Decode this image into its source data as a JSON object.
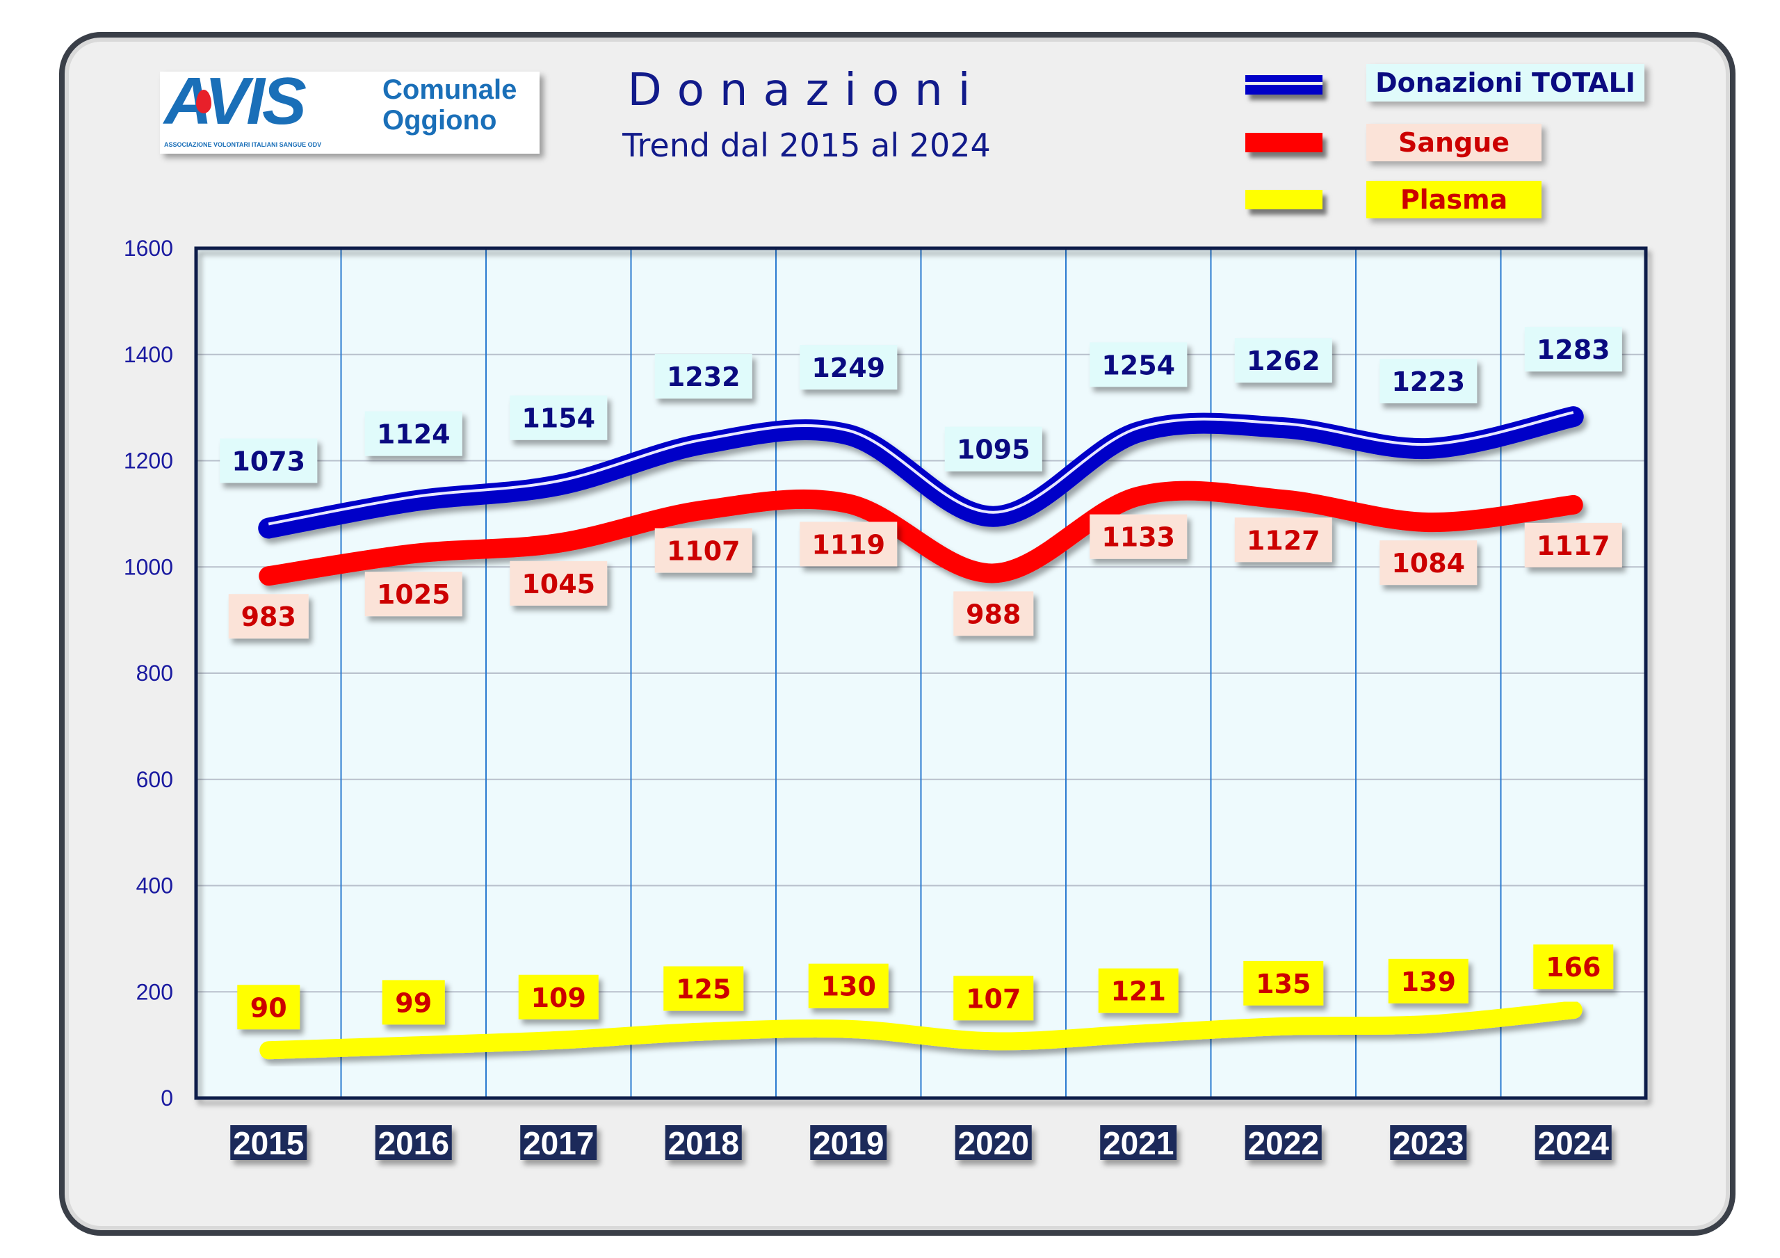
{
  "logo": {
    "mark": "AVIS",
    "tagline": "ASSOCIAZIONE VOLONTARI ITALIANI SANGUE ODV",
    "name_line1": "Comunale",
    "name_line2": "Oggiono"
  },
  "chart_data": {
    "type": "line",
    "title": "Donazioni",
    "subtitle": "Trend dal 2015 al 2024",
    "xlabel": "",
    "ylabel": "",
    "categories": [
      "2015",
      "2016",
      "2017",
      "2018",
      "2019",
      "2020",
      "2021",
      "2022",
      "2023",
      "2024"
    ],
    "ylim": [
      0,
      1600
    ],
    "yticks": [
      0,
      200,
      400,
      600,
      800,
      1000,
      1200,
      1400,
      1600
    ],
    "grid": true,
    "legend_position": "top-right",
    "series": [
      {
        "name": "Donazioni TOTALI",
        "color": "#0000c8",
        "label_bg": "#e0fbfb",
        "label_color": "#0a0a80",
        "values": [
          1073,
          1124,
          1154,
          1232,
          1249,
          1095,
          1254,
          1262,
          1223,
          1283
        ]
      },
      {
        "name": "Sangue",
        "color": "#ff0000",
        "label_bg": "#fbe3d8",
        "label_color": "#cc0000",
        "values": [
          983,
          1025,
          1045,
          1107,
          1119,
          988,
          1133,
          1127,
          1084,
          1117
        ]
      },
      {
        "name": "Plasma",
        "color": "#ffff00",
        "label_bg": "#ffff00",
        "label_color": "#cc0000",
        "values": [
          90,
          99,
          109,
          125,
          130,
          107,
          121,
          135,
          139,
          166
        ]
      }
    ]
  }
}
